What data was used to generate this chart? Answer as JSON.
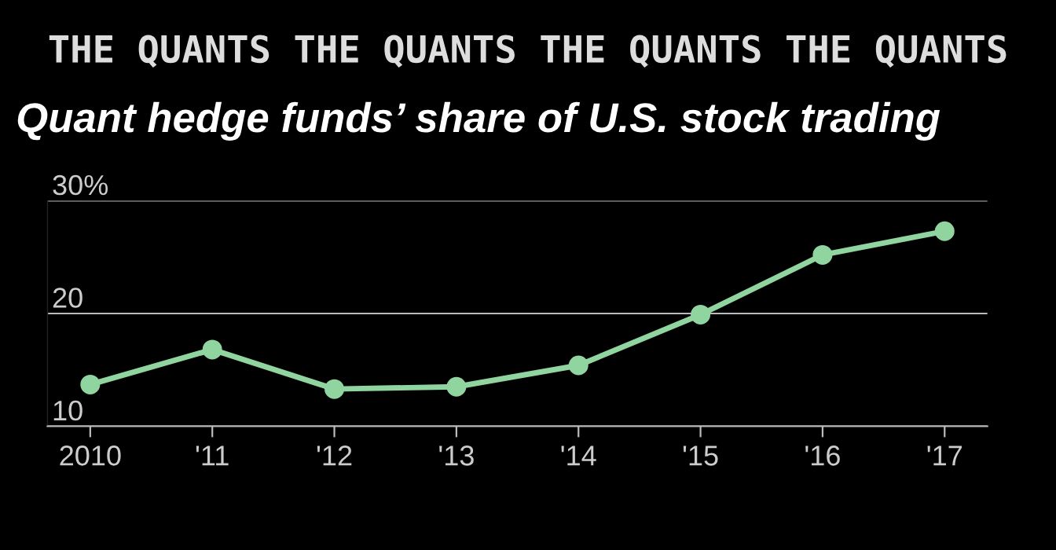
{
  "chart_data": {
    "type": "line",
    "title": "Quant hedge funds’ share of U.S. stock trading",
    "annotations": [
      "THE QUANTS THE QUANTS THE QUANTS THE QUANTS"
    ],
    "categories": [
      "2010",
      "'11",
      "'12",
      "'13",
      "'14",
      "'15",
      "'16",
      "'17"
    ],
    "series": [
      {
        "color": "#90d4a0",
        "values": [
          13.7,
          16.8,
          13.3,
          13.5,
          15.4,
          19.9,
          25.2,
          27.3
        ]
      }
    ],
    "ylim": [
      10,
      30
    ],
    "yticks": [
      10,
      20,
      {
        "value": 30,
        "label": "30%"
      }
    ],
    "grid": "y",
    "marker": "circle",
    "line_style": "solid"
  }
}
